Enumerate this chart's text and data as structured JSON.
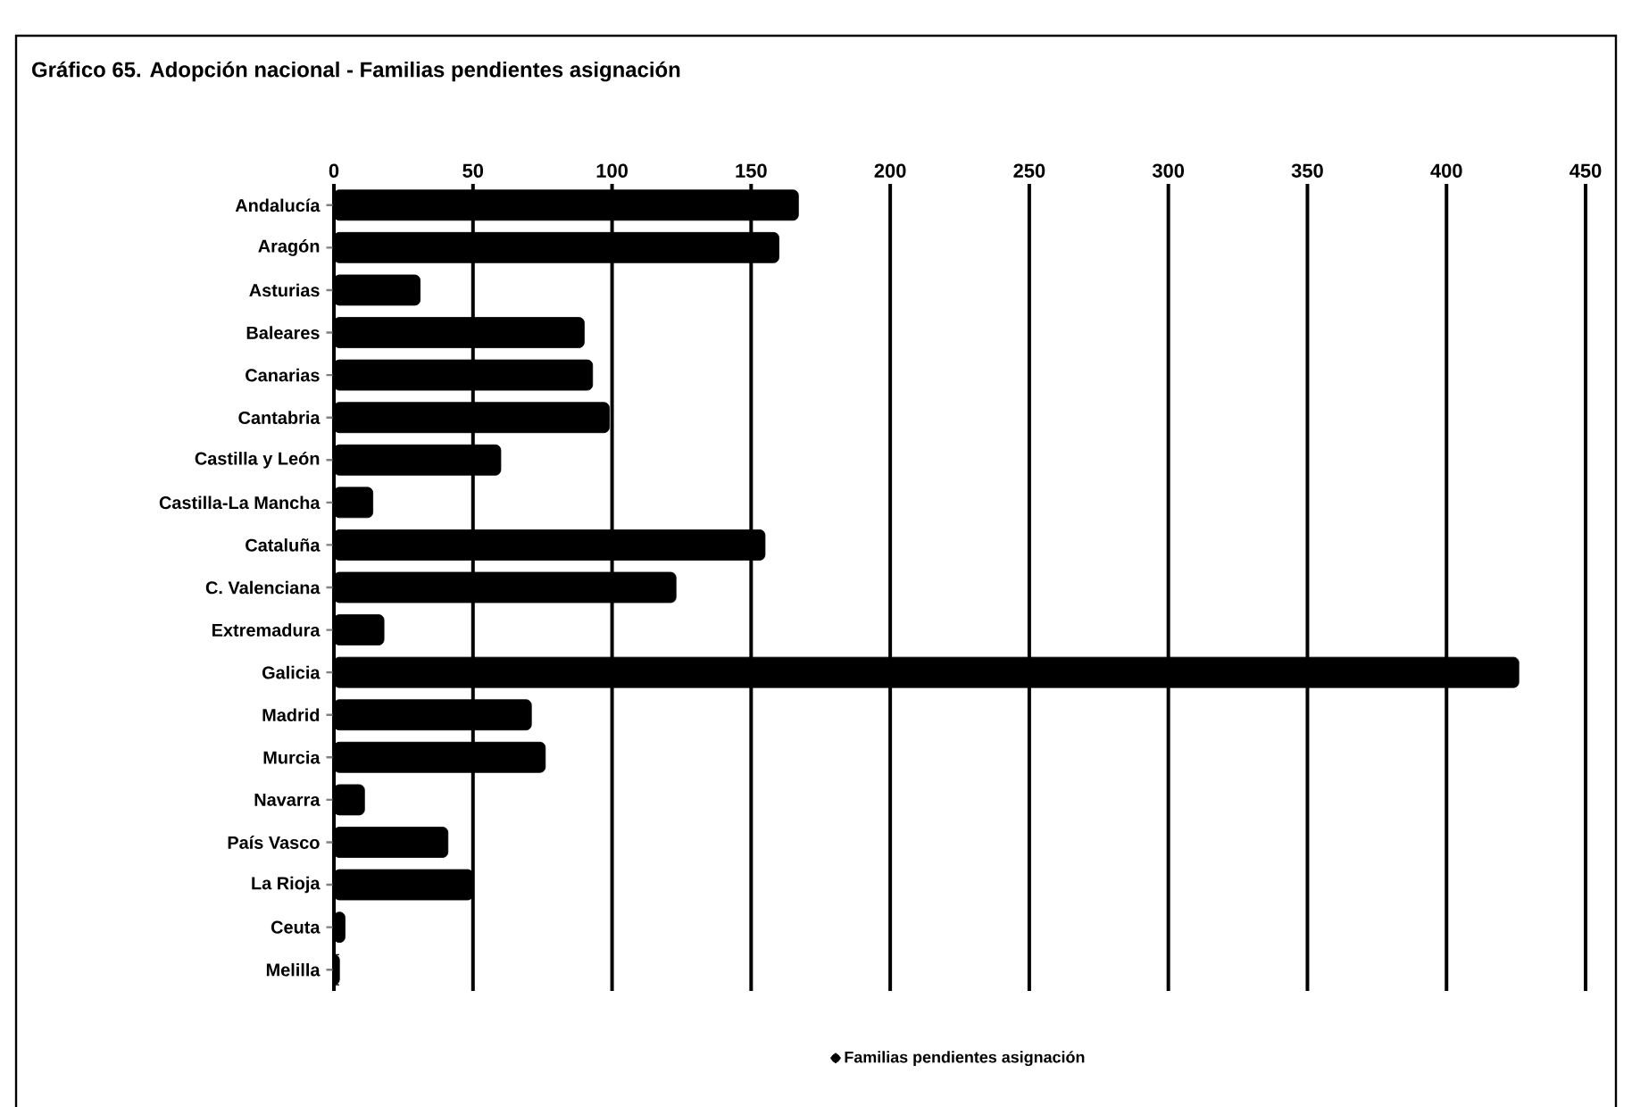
{
  "chart_data": {
    "type": "bar",
    "orientation": "horizontal",
    "title": "Gráfico 65. Adopción nacional - Familias pendientes asignación",
    "categories": [
      "Andalucía",
      "Aragón",
      "Asturias",
      "Baleares",
      "Canarias",
      "Cantabria",
      "Castilla y León",
      "Castilla-La Mancha",
      "Cataluña",
      "C. Valenciana",
      "Extremadura",
      "Galicia",
      "Madrid",
      "Murcia",
      "Navarra",
      "País Vasco",
      "La Rioja",
      "Ceuta",
      "Melilla"
    ],
    "series": [
      {
        "name": "Familias pendientes asignación",
        "color": "#000000",
        "values": [
          167,
          160,
          31,
          90,
          93,
          99,
          60,
          14,
          155,
          123,
          18,
          426,
          71,
          76,
          11,
          41,
          50,
          4,
          2
        ]
      }
    ],
    "xlim": [
      0,
      450
    ],
    "xticks": [
      0,
      50,
      100,
      150,
      200,
      250,
      300,
      350,
      400,
      450
    ],
    "grid": "x",
    "legend": "bottom"
  }
}
